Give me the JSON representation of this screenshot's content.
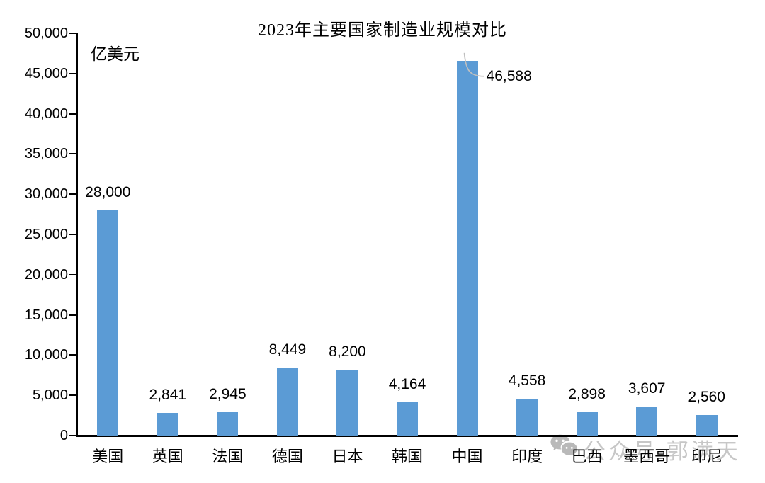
{
  "page": {
    "background_color": "#ffffff"
  },
  "chart_data": {
    "type": "bar",
    "title": "2023年主要国家制造业规模对比",
    "unit_label": "亿美元",
    "categories": [
      "美国",
      "英国",
      "法国",
      "德国",
      "日本",
      "韩国",
      "中国",
      "印度",
      "巴西",
      "墨西哥",
      "印尼"
    ],
    "values": [
      28000,
      2841,
      2945,
      8449,
      8200,
      4164,
      46588,
      4558,
      2898,
      3607,
      2560
    ],
    "value_labels": [
      "28,000",
      "2,841",
      "2,945",
      "8,449",
      "8,200",
      "4,164",
      "46,588",
      "4,558",
      "2,898",
      "3,607",
      "2,560"
    ],
    "xlabel": "",
    "ylabel": "亿美元",
    "ylim": [
      0,
      50000
    ],
    "ytick_step": 5000,
    "yticks": [
      {
        "value": 0,
        "label": "0"
      },
      {
        "value": 5000,
        "label": "5,000"
      },
      {
        "value": 10000,
        "label": "10,000"
      },
      {
        "value": 15000,
        "label": "15,000"
      },
      {
        "value": 20000,
        "label": "20,000"
      },
      {
        "value": 25000,
        "label": "25,000"
      },
      {
        "value": 30000,
        "label": "30,000"
      },
      {
        "value": 35000,
        "label": "35,000"
      },
      {
        "value": 40000,
        "label": "40,000"
      },
      {
        "value": 45000,
        "label": "45,000"
      },
      {
        "value": 50000,
        "label": "50,000"
      }
    ],
    "bar_color": "#5B9BD5",
    "axis_color": "#000000",
    "text_color": "#000000",
    "grid": false,
    "legend_position": "none",
    "callout": {
      "category": "中国",
      "leader_color": "#BFBFBF"
    }
  },
  "watermark": {
    "icon": "wechat-icon",
    "text": "公众号 郭满天",
    "color": "#c7c7c7"
  }
}
